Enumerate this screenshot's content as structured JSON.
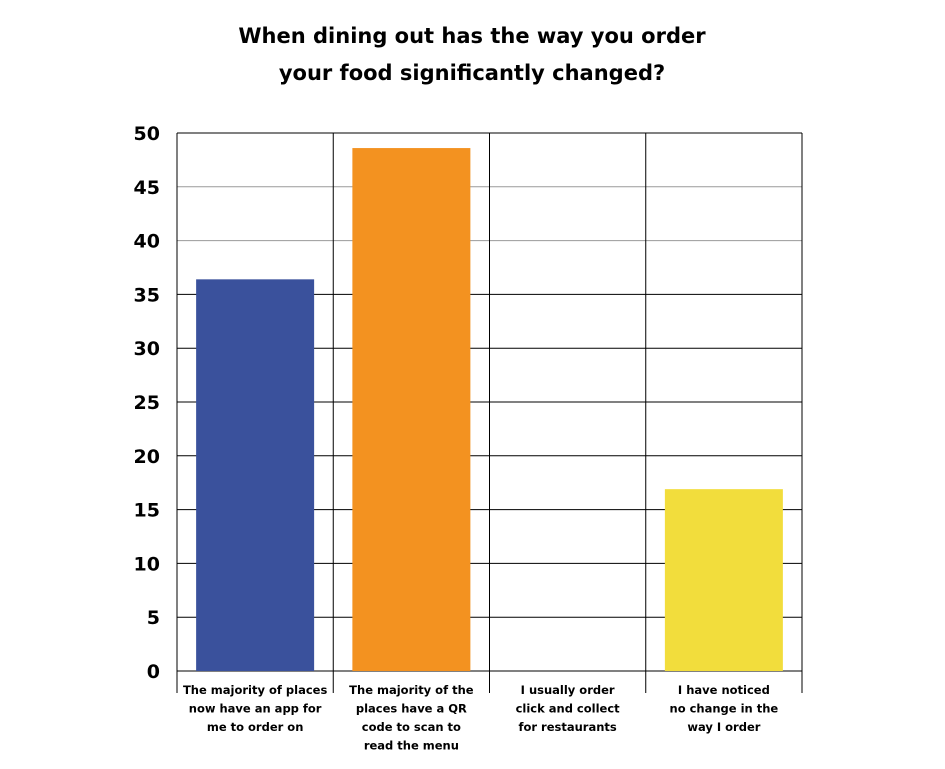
{
  "chart_data": {
    "type": "bar",
    "title_lines": [
      "When dining out has the way you order",
      "your food significantly changed?"
    ],
    "categories": [
      [
        "The majority of places",
        "now have an app for",
        "me to order on"
      ],
      [
        "The majority of the",
        "places have a QR",
        "code to scan to",
        "read the menu"
      ],
      [
        "I usually order",
        "click and collect",
        "for restaurants"
      ],
      [
        "I have noticed",
        "no change in the",
        "way I order"
      ]
    ],
    "values": [
      36.4,
      48.6,
      0,
      16.9
    ],
    "colors": [
      "#3a519c",
      "#f39220",
      "#cccccc",
      "#f2dd3c"
    ],
    "ylim": [
      0,
      50
    ],
    "yticks": [
      "0",
      "5",
      "10",
      "15",
      "20",
      "25",
      "30",
      "35",
      "40",
      "45",
      "50"
    ],
    "xlabel": "",
    "ylabel": "",
    "grid": true,
    "legend": "none"
  }
}
